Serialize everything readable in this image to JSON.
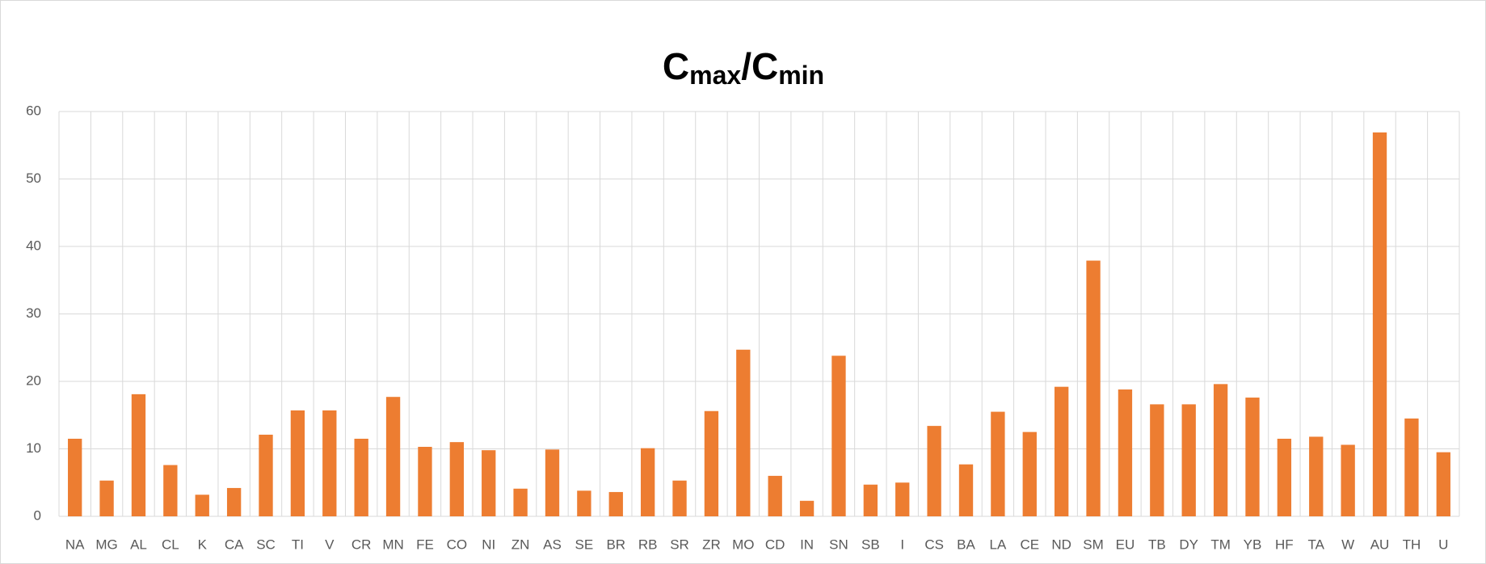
{
  "chart_data": {
    "type": "bar",
    "title": [
      {
        "text": "C"
      },
      {
        "text": "max",
        "sub": true
      },
      {
        "text": "/"
      },
      {
        "text": "C"
      },
      {
        "text": "min",
        "sub": true
      }
    ],
    "categories": [
      "NA",
      "MG",
      "AL",
      "CL",
      "K",
      "CA",
      "SC",
      "TI",
      "V",
      "CR",
      "MN",
      "FE",
      "CO",
      "NI",
      "ZN",
      "AS",
      "SE",
      "BR",
      "RB",
      "SR",
      "ZR",
      "MO",
      "CD",
      "IN",
      "SN",
      "SB",
      "I",
      "CS",
      "BA",
      "LA",
      "CE",
      "ND",
      "SM",
      "EU",
      "TB",
      "DY",
      "TM",
      "YB",
      "HF",
      "TA",
      "W",
      "AU",
      "TH",
      "U"
    ],
    "values": [
      11.5,
      5.3,
      18.1,
      7.6,
      3.2,
      4.2,
      12.1,
      15.7,
      15.7,
      11.5,
      17.7,
      10.3,
      11.0,
      9.8,
      4.1,
      9.9,
      3.8,
      3.6,
      10.1,
      5.3,
      15.6,
      24.7,
      6.0,
      2.3,
      23.8,
      4.7,
      5.0,
      13.4,
      7.7,
      15.5,
      12.5,
      19.2,
      37.9,
      18.8,
      16.6,
      16.6,
      19.6,
      17.6,
      11.5,
      11.8,
      10.6,
      56.9,
      14.5,
      9.5
    ],
    "color": "#ed7d31",
    "ylim": [
      0,
      60
    ],
    "yticks": [
      0,
      10,
      20,
      30,
      40,
      50,
      60
    ],
    "grid": true
  }
}
